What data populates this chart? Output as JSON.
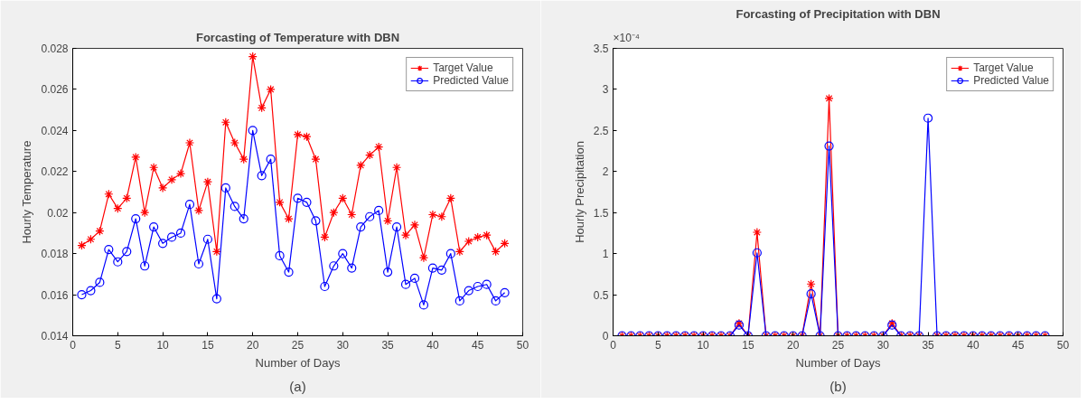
{
  "chart_data": [
    {
      "type": "line",
      "title": "Forcasting of Temperature with DBN",
      "xlabel": "Number of Days",
      "ylabel": "Hourly Temperature",
      "x": [
        1,
        2,
        3,
        4,
        5,
        6,
        7,
        8,
        9,
        10,
        11,
        12,
        13,
        14,
        15,
        16,
        17,
        18,
        19,
        20,
        21,
        22,
        23,
        24,
        25,
        26,
        27,
        28,
        29,
        30,
        31,
        32,
        33,
        34,
        35,
        36,
        37,
        38,
        39,
        40,
        41,
        42,
        43,
        44,
        45,
        46,
        47,
        48
      ],
      "series": [
        {
          "name": "Target Value",
          "color": "#ff0000",
          "marker": "cross",
          "values": [
            0.0184,
            0.0187,
            0.0191,
            0.0209,
            0.0202,
            0.0207,
            0.0227,
            0.02,
            0.0222,
            0.0212,
            0.0216,
            0.0219,
            0.0234,
            0.0201,
            0.0215,
            0.0181,
            0.0244,
            0.0234,
            0.0226,
            0.0276,
            0.0251,
            0.026,
            0.0205,
            0.0197,
            0.0238,
            0.0237,
            0.0226,
            0.0188,
            0.02,
            0.0207,
            0.0199,
            0.0223,
            0.0228,
            0.0232,
            0.0196,
            0.0222,
            0.0189,
            0.0194,
            0.0178,
            0.0199,
            0.0198,
            0.0207,
            0.0181,
            0.0186,
            0.0188,
            0.0189,
            0.0181,
            0.0185
          ]
        },
        {
          "name": "Predicted Value",
          "color": "#0000ff",
          "marker": "circle",
          "values": [
            0.016,
            0.0162,
            0.0166,
            0.0182,
            0.0176,
            0.0181,
            0.0197,
            0.0174,
            0.0193,
            0.0185,
            0.0188,
            0.019,
            0.0204,
            0.0175,
            0.0187,
            0.0158,
            0.0212,
            0.0203,
            0.0197,
            0.024,
            0.0218,
            0.0226,
            0.0179,
            0.0171,
            0.0207,
            0.0205,
            0.0196,
            0.0164,
            0.0174,
            0.018,
            0.0173,
            0.0193,
            0.0198,
            0.0201,
            0.0171,
            0.0193,
            0.0165,
            0.0168,
            0.0155,
            0.0173,
            0.0172,
            0.018,
            0.0157,
            0.0162,
            0.0164,
            0.0165,
            0.0157,
            0.0161
          ]
        }
      ],
      "xlim": [
        0,
        50
      ],
      "xticks": [
        0,
        5,
        10,
        15,
        20,
        25,
        30,
        35,
        40,
        45,
        50
      ],
      "ylim": [
        0.014,
        0.028
      ],
      "yticks": [
        0.014,
        0.016,
        0.018,
        {
          "value": 0.02,
          "label": "0.02"
        },
        0.022,
        0.024,
        0.026,
        0.028
      ],
      "grid": false,
      "legend": "top right",
      "annotations": [
        "(a)"
      ]
    },
    {
      "type": "line",
      "title": "Forcasting of Precipitation with DBN",
      "xlabel": "Number of Days",
      "ylabel": "Hourly Precipitation",
      "x": [
        1,
        2,
        3,
        4,
        5,
        6,
        7,
        8,
        9,
        10,
        11,
        12,
        13,
        14,
        15,
        16,
        17,
        18,
        19,
        20,
        21,
        22,
        23,
        24,
        25,
        26,
        27,
        28,
        29,
        30,
        31,
        32,
        33,
        34,
        35,
        36,
        37,
        38,
        39,
        40,
        41,
        42,
        43,
        44,
        45,
        46,
        47,
        48
      ],
      "series": [
        {
          "name": "Target Value",
          "color": "#ff0000",
          "marker": "cross",
          "values": [
            0,
            0,
            0,
            0,
            0,
            0,
            0,
            0,
            0,
            0,
            0,
            0,
            0,
            0.15,
            0,
            1.26,
            0,
            0,
            0,
            0,
            0,
            0.63,
            0,
            2.89,
            0,
            0,
            0,
            0,
            0,
            0,
            0.15,
            0,
            0,
            0,
            null,
            0,
            0,
            0,
            0,
            0,
            0,
            0,
            0,
            0,
            0,
            0,
            0,
            0
          ]
        },
        {
          "name": "Predicted Value",
          "color": "#0000ff",
          "marker": "circle",
          "values": [
            0,
            0,
            0,
            0,
            0,
            0,
            0,
            0,
            0,
            0,
            0,
            0,
            0,
            0.13,
            0,
            1.01,
            0,
            0,
            0,
            0,
            0,
            0.51,
            0,
            2.31,
            0,
            0,
            0,
            0,
            0,
            0,
            0.13,
            0,
            0,
            0,
            2.65,
            0,
            0,
            0,
            0,
            0,
            0,
            0,
            0,
            0,
            0,
            0,
            0,
            0
          ]
        }
      ],
      "xlim": [
        0,
        50
      ],
      "xticks": [
        0,
        5,
        10,
        15,
        20,
        25,
        30,
        35,
        40,
        45,
        50
      ],
      "ylim": [
        0,
        3.5
      ],
      "yticks": [
        0,
        0.5,
        1,
        1.5,
        2,
        2.5,
        3,
        3.5
      ],
      "grid": false,
      "legend": "top right",
      "annotations": [
        "×10⁻⁴",
        "(b)"
      ]
    }
  ]
}
